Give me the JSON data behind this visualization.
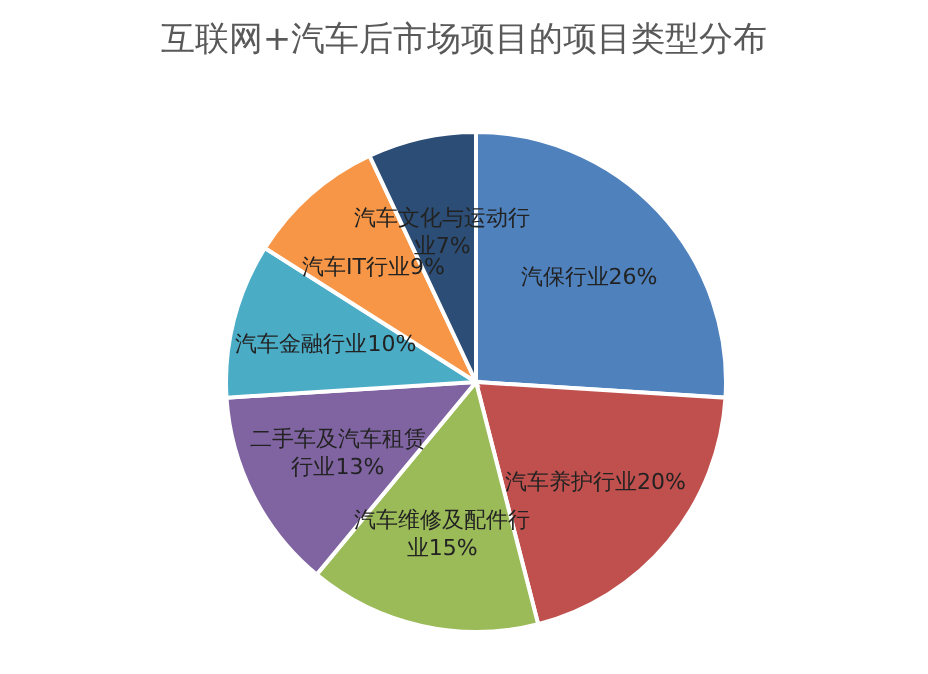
{
  "chart_data": {
    "type": "pie",
    "title": "互联网+汽车后市场项目的项目类型分布",
    "categories": [
      "汽保行业",
      "汽车养护行业",
      "汽车维修及配件行业",
      "二手车及汽车租赁行业",
      "汽车金融行业",
      "汽车IT行业",
      "汽车文化与运动行业"
    ],
    "values": [
      26,
      20,
      15,
      13,
      10,
      9,
      7
    ],
    "value_labels": [
      "26%",
      "20%",
      "15%",
      "13%",
      "10%",
      "9%",
      "7%"
    ],
    "colors": [
      "#4f81bd",
      "#c0504d",
      "#9bbb59",
      "#8064a2",
      "#4bacc6",
      "#f79646",
      "#2c4d75"
    ],
    "legend": false
  }
}
